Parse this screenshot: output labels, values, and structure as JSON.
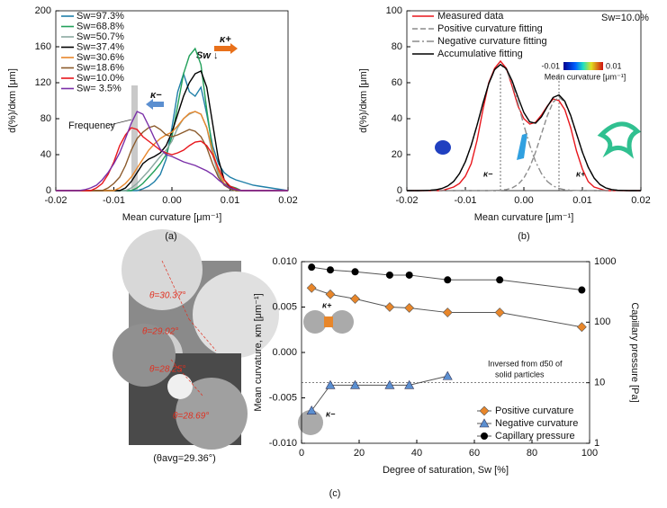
{
  "chart_data": [
    {
      "type": "line",
      "caption": "(a)",
      "xlabel": "Mean curvature [μm⁻¹]",
      "ylabel": "d(%)/dκm [μm]",
      "xlim": [
        -0.02,
        0.02
      ],
      "xticks": [
        -0.02,
        -0.01,
        {
          "value": 0,
          "label": "0.00"
        },
        0.01,
        0.02
      ],
      "ylim": [
        0,
        200
      ],
      "yticks": [
        0,
        40,
        80,
        120,
        160,
        200
      ],
      "legend": "upper left",
      "annotations": [
        "Sw ↓",
        "κ+",
        "κ−",
        "Frequency"
      ],
      "x": [
        -0.02,
        -0.019,
        -0.018,
        -0.017,
        -0.016,
        -0.015,
        -0.014,
        -0.013,
        -0.012,
        -0.011,
        -0.01,
        -0.009,
        -0.008,
        -0.007,
        -0.006,
        -0.005,
        -0.004,
        -0.003,
        -0.002,
        -0.001,
        0,
        0.001,
        0.002,
        0.003,
        0.004,
        0.005,
        0.006,
        0.007,
        0.008,
        0.009,
        0.01,
        0.011,
        0.012,
        0.013,
        0.014,
        0.015,
        0.016,
        0.017,
        0.018,
        0.019,
        0.02
      ],
      "series": [
        {
          "name": "Sw=97.3%",
          "color": "#1f7fa8",
          "values": [
            0,
            0,
            0,
            0,
            0,
            0,
            0,
            0,
            0,
            0,
            0,
            0,
            0,
            0,
            0,
            2,
            5,
            10,
            18,
            35,
            70,
            110,
            130,
            110,
            105,
            115,
            85,
            50,
            30,
            20,
            15,
            12,
            10,
            8,
            6,
            5,
            4,
            3,
            2,
            1,
            0
          ]
        },
        {
          "name": "Sw=68.8%",
          "color": "#22a05a",
          "values": [
            0,
            0,
            0,
            0,
            0,
            0,
            0,
            0,
            0,
            0,
            0,
            0,
            0,
            0,
            3,
            8,
            15,
            22,
            30,
            40,
            60,
            95,
            130,
            150,
            158,
            140,
            90,
            45,
            18,
            8,
            5,
            3,
            0,
            0,
            0,
            0,
            0,
            0,
            0,
            0,
            0
          ]
        },
        {
          "name": "Sw=50.7%",
          "color": "#8aa8a0",
          "values": [
            0,
            0,
            0,
            0,
            0,
            0,
            0,
            0,
            0,
            0,
            0,
            0,
            0,
            3,
            8,
            15,
            22,
            30,
            38,
            45,
            55,
            70,
            80,
            85,
            88,
            85,
            70,
            40,
            18,
            6,
            2,
            0,
            0,
            0,
            0,
            0,
            0,
            0,
            0,
            0,
            0
          ]
        },
        {
          "name": "Sw=37.4%",
          "color": "#000000",
          "values": [
            0,
            0,
            0,
            0,
            0,
            0,
            0,
            0,
            0,
            0,
            0,
            0,
            3,
            10,
            20,
            30,
            35,
            38,
            42,
            50,
            65,
            85,
            105,
            120,
            130,
            133,
            115,
            75,
            35,
            12,
            4,
            0,
            0,
            0,
            0,
            0,
            0,
            0,
            0,
            0,
            0
          ]
        },
        {
          "name": "Sw=30.6%",
          "color": "#e8862a",
          "values": [
            0,
            0,
            0,
            0,
            0,
            0,
            0,
            0,
            0,
            0,
            0,
            3,
            8,
            15,
            25,
            35,
            45,
            52,
            58,
            62,
            65,
            72,
            80,
            86,
            88,
            85,
            70,
            45,
            22,
            8,
            3,
            0,
            0,
            0,
            0,
            0,
            0,
            0,
            0,
            0,
            0
          ]
        },
        {
          "name": "Sw=18.6%",
          "color": "#8b5a2b",
          "values": [
            0,
            0,
            0,
            0,
            0,
            0,
            0,
            0,
            0,
            3,
            8,
            15,
            28,
            45,
            58,
            65,
            70,
            72,
            68,
            62,
            60,
            62,
            65,
            68,
            66,
            60,
            48,
            30,
            15,
            6,
            2,
            0,
            0,
            0,
            0,
            0,
            0,
            0,
            0,
            0,
            0
          ]
        },
        {
          "name": "Sw=10.0%",
          "color": "#e8161c",
          "values": [
            0,
            0,
            0,
            0,
            0,
            0,
            0,
            3,
            8,
            18,
            32,
            50,
            62,
            70,
            68,
            60,
            55,
            50,
            45,
            42,
            40,
            42,
            45,
            50,
            54,
            55,
            50,
            40,
            25,
            12,
            5,
            2,
            0,
            0,
            0,
            0,
            0,
            0,
            0,
            0,
            0
          ]
        },
        {
          "name": "Sw= 3.5%",
          "color": "#7a2fa8",
          "values": [
            0,
            0,
            0,
            0,
            0,
            1,
            3,
            6,
            12,
            20,
            30,
            42,
            58,
            75,
            88,
            85,
            72,
            58,
            46,
            40,
            38,
            35,
            32,
            30,
            28,
            25,
            22,
            18,
            12,
            7,
            3,
            1,
            0,
            0,
            0,
            0,
            0,
            0,
            0,
            0,
            0
          ]
        }
      ]
    },
    {
      "type": "line",
      "caption": "(b)",
      "xlabel": "Mean curvature [μm⁻¹]",
      "ylabel": "d(%)/dκm [μm]",
      "xlim": [
        -0.02,
        0.02
      ],
      "xticks": [
        -0.02,
        -0.01,
        {
          "value": 0,
          "label": "0.00"
        },
        0.01,
        0.02
      ],
      "ylim": [
        0,
        100
      ],
      "yticks": [
        0,
        20,
        40,
        60,
        80,
        100
      ],
      "legend": "upper left",
      "annotations": [
        "Sw=10.0%",
        "κ−",
        "κ+",
        "-0.01",
        "0.01",
        "Mean curvature [μm⁻¹]"
      ],
      "vlines": [
        -0.004,
        0.006
      ],
      "x": [
        -0.02,
        -0.019,
        -0.018,
        -0.017,
        -0.016,
        -0.015,
        -0.014,
        -0.013,
        -0.012,
        -0.011,
        -0.01,
        -0.009,
        -0.008,
        -0.007,
        -0.006,
        -0.005,
        -0.004,
        -0.003,
        -0.002,
        -0.001,
        0,
        0.001,
        0.002,
        0.003,
        0.004,
        0.005,
        0.006,
        0.007,
        0.008,
        0.009,
        0.01,
        0.011,
        0.012,
        0.013,
        0.014,
        0.015,
        0.016,
        0.017,
        0.018,
        0.019,
        0.02
      ],
      "series": [
        {
          "name": "Measured data",
          "color": "#e8161c",
          "values": [
            0,
            0,
            0,
            0,
            0,
            0,
            0,
            1,
            2,
            4,
            8,
            15,
            28,
            45,
            60,
            68,
            72,
            68,
            58,
            47,
            40,
            37,
            38,
            42,
            47,
            51,
            50,
            45,
            35,
            22,
            12,
            5,
            2,
            1,
            0,
            0,
            0,
            0,
            0,
            0,
            0
          ]
        },
        {
          "name": "Positive curvature fitting",
          "color": "#8c8c8c",
          "dash": "dashed",
          "values": [
            0,
            0,
            0,
            0,
            0,
            0,
            0,
            0,
            0,
            0,
            0,
            0,
            0,
            0,
            0,
            0.1,
            0.2,
            0.6,
            1.5,
            3.4,
            7,
            13,
            21.4,
            31.5,
            41.6,
            49.2,
            52,
            49.2,
            41.6,
            31.5,
            21.4,
            13,
            7,
            3.4,
            1.5,
            0.6,
            0.2,
            0.1,
            0,
            0,
            0
          ]
        },
        {
          "name": "Negative curvature fitting",
          "color": "#8c8c8c",
          "dash": "dashdot",
          "values": [
            0,
            0,
            0,
            0.1,
            0.2,
            0.5,
            1.2,
            2.6,
            5.1,
            9.5,
            16.1,
            25.2,
            36.4,
            48.5,
            59.5,
            67.2,
            70,
            67.2,
            59.5,
            48.5,
            36.4,
            25.2,
            16.1,
            9.5,
            5.1,
            2.6,
            1.2,
            0.5,
            0.2,
            0.1,
            0,
            0,
            0,
            0,
            0,
            0,
            0,
            0,
            0,
            0,
            0
          ]
        },
        {
          "name": "Accumulative fitting",
          "color": "#000000",
          "values": [
            0,
            0,
            0,
            0.1,
            0.2,
            0.5,
            1.2,
            2.6,
            5.1,
            9.5,
            16.1,
            25.2,
            36.4,
            48.5,
            59.5,
            67.3,
            70.2,
            67.8,
            61,
            51.9,
            43.4,
            38.2,
            37.5,
            41,
            46.7,
            51.8,
            53.2,
            49.7,
            41.8,
            31.6,
            21.4,
            13,
            7,
            3.4,
            1.5,
            0.6,
            0.2,
            0.1,
            0,
            0,
            0
          ]
        }
      ]
    },
    {
      "type": "line",
      "caption": "(c)",
      "xlabel": "Degree of saturation, Sw [%]",
      "ylabel": "Mean curvature, κm  [μm⁻¹]",
      "y2label": "Capillary pressure [Pa]",
      "xlim": [
        0,
        100
      ],
      "xticks": [
        0,
        20,
        40,
        60,
        80,
        100
      ],
      "ylim": [
        -0.01,
        0.01
      ],
      "yticks": [
        {
          "value": -0.01,
          "label": "-0.010"
        },
        {
          "value": -0.005,
          "label": "-0.005"
        },
        {
          "value": 0,
          "label": "0.000"
        },
        {
          "value": 0.005,
          "label": "0.005"
        },
        {
          "value": 0.01,
          "label": "0.010"
        }
      ],
      "y2lim": [
        1,
        1000
      ],
      "y2ticks": [
        1,
        10,
        100,
        1000
      ],
      "y2log": true,
      "legend": "lower right",
      "annotations": [
        "Inversed from d50 of",
        "solid particles",
        "κ+",
        "κ−"
      ],
      "hline": {
        "value": 10,
        "axis": "y2"
      },
      "series": [
        {
          "name": "Positive curvature",
          "color": "#e8862a",
          "marker": "diamond",
          "x": [
            3.5,
            10,
            18.6,
            30.6,
            37.4,
            50.7,
            68.8,
            97.3
          ],
          "values": [
            0.0071,
            0.0064,
            0.0059,
            0.005,
            0.0049,
            0.0044,
            0.0044,
            0.0028
          ]
        },
        {
          "name": "Negative curvature",
          "color": "#5b8fd0",
          "marker": "triangle",
          "x": [
            3.5,
            10,
            18.6,
            30.6,
            37.4,
            50.7
          ],
          "values": [
            -0.0064,
            -0.0036,
            -0.0036,
            -0.0036,
            -0.0036,
            -0.0026
          ]
        },
        {
          "name": "Capillary pressure",
          "color": "#000000",
          "marker": "circle",
          "axis": "y2",
          "x": [
            3.5,
            10,
            18.6,
            30.6,
            37.4,
            50.7,
            68.8,
            97.3
          ],
          "values": [
            810,
            730,
            680,
            600,
            600,
            500,
            500,
            340
          ]
        }
      ]
    }
  ],
  "micrograph": {
    "angles": [
      "θ=30.37°",
      "θ=29.02°",
      "θ=28.25°",
      "θ=28.69°"
    ],
    "caption": "(θavg=29.36°)"
  }
}
